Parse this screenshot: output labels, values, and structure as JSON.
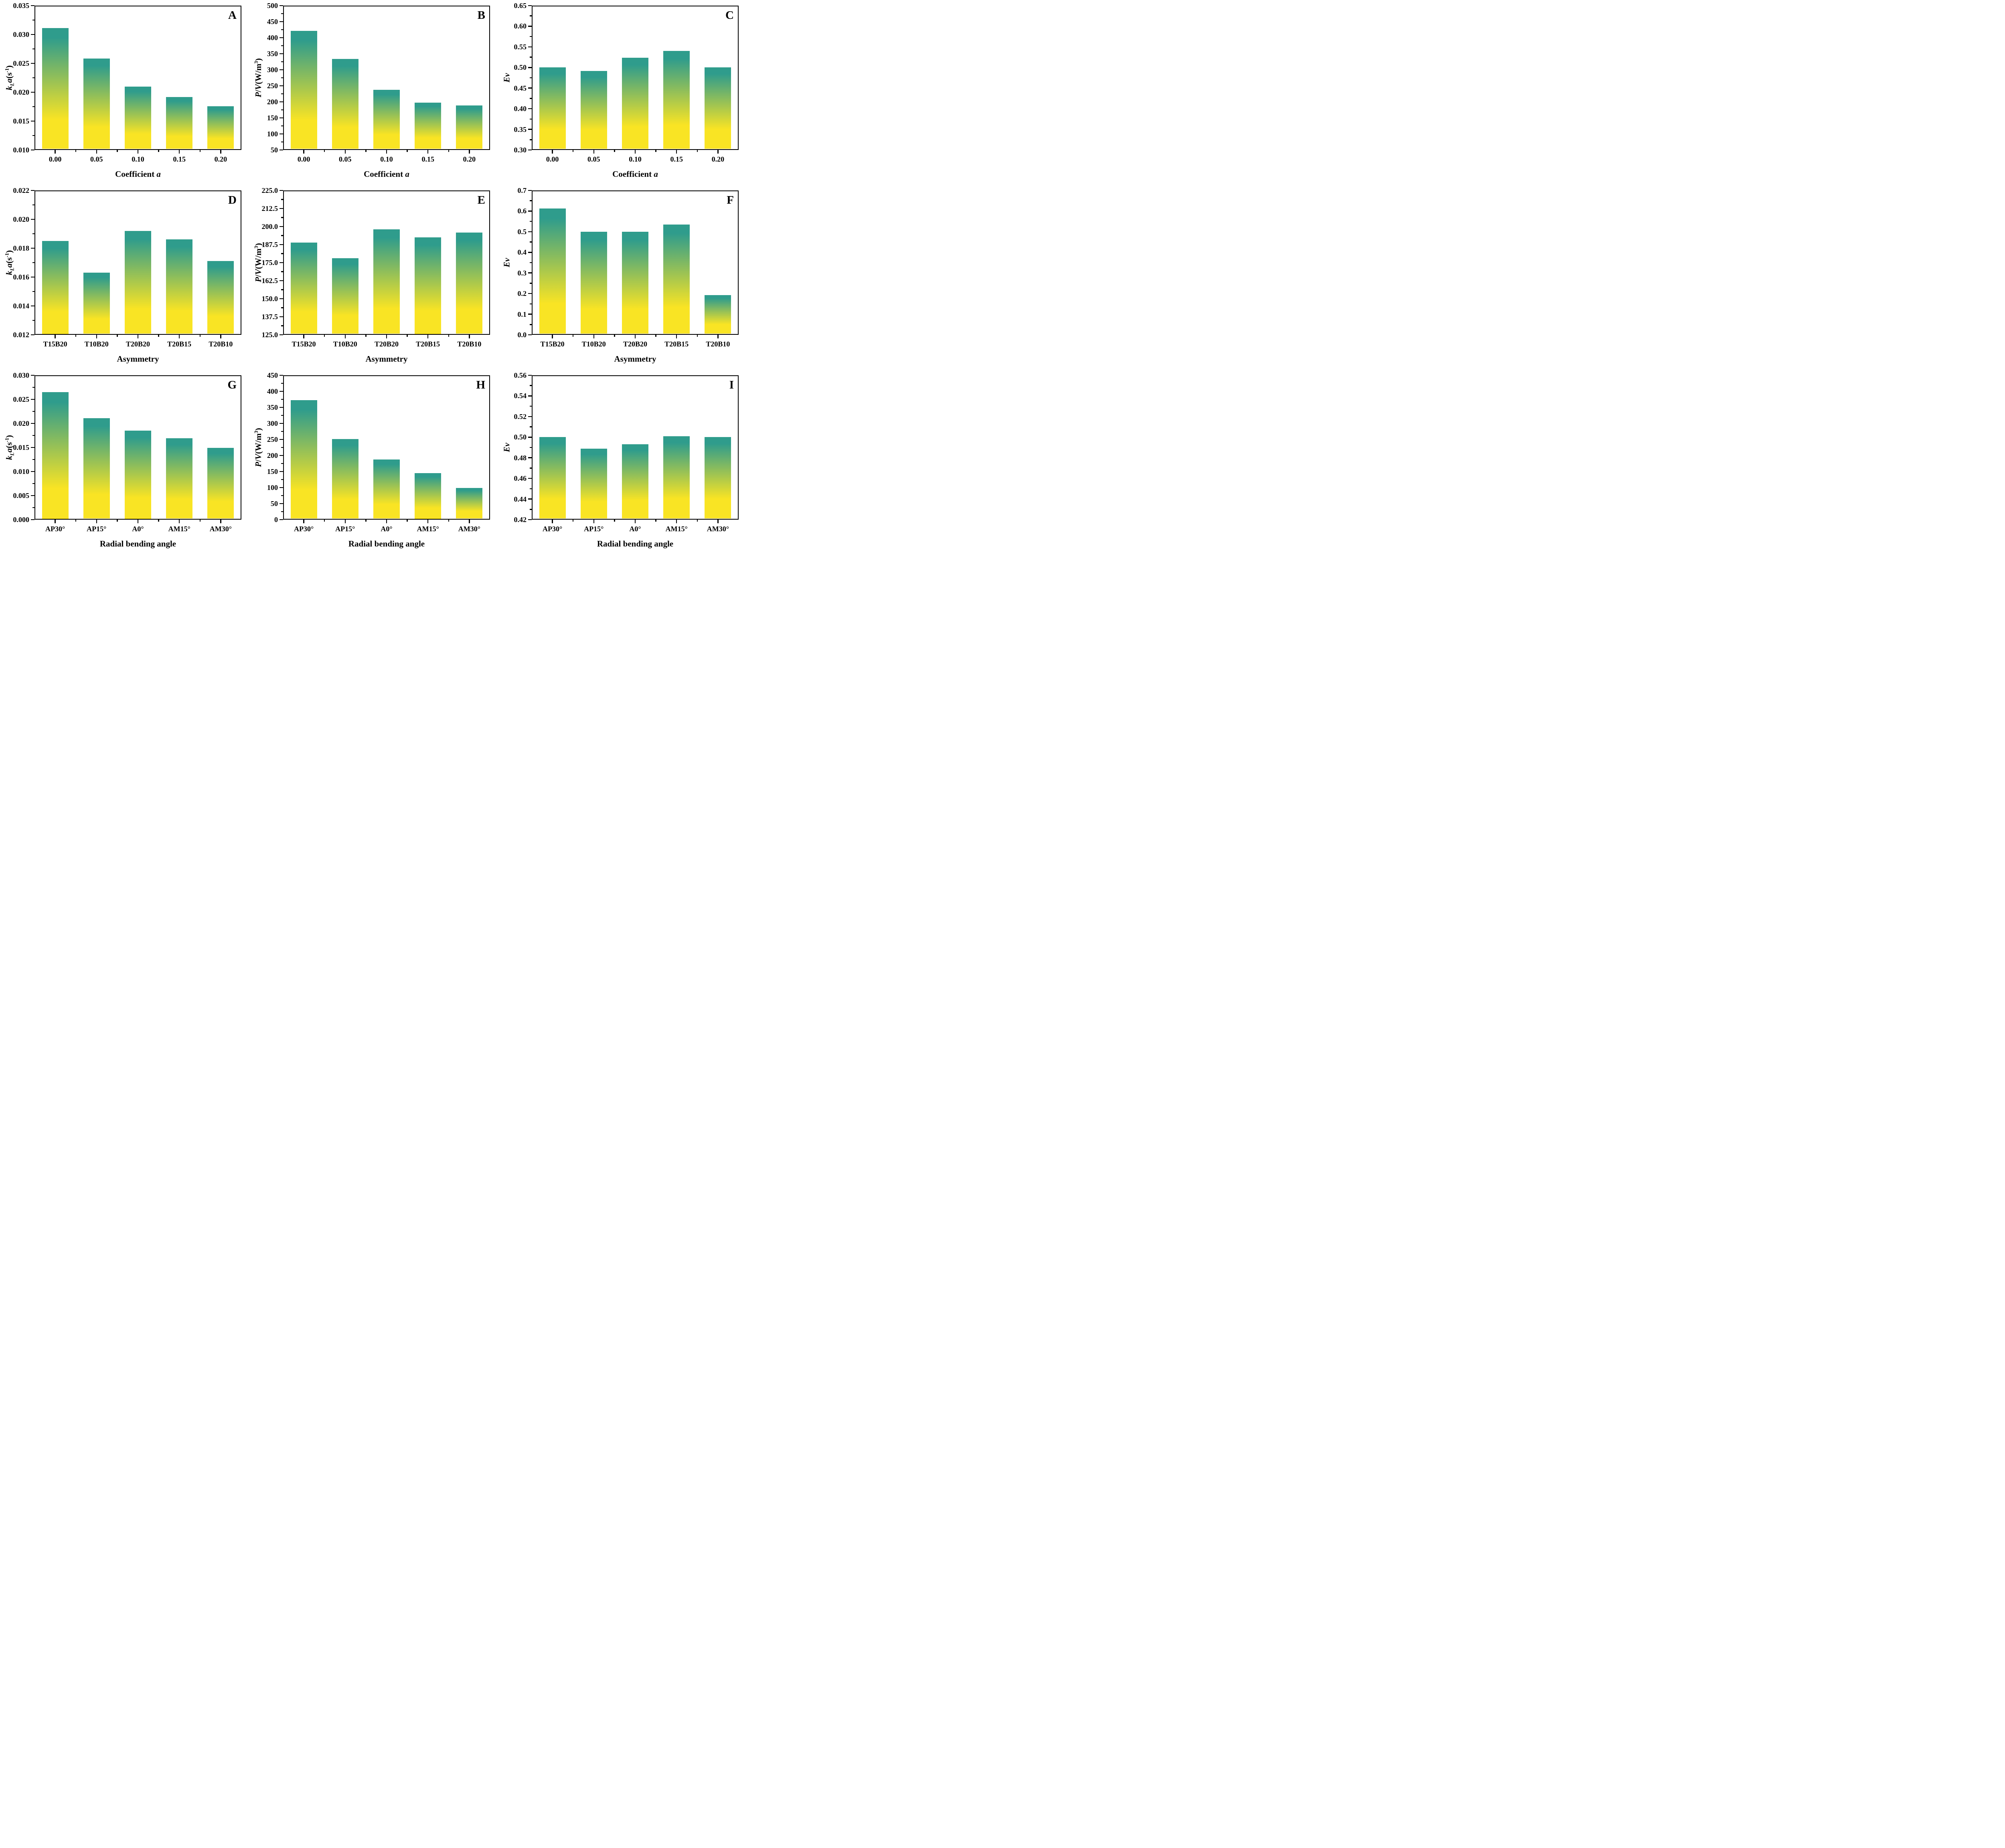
{
  "page": {
    "background": "#ffffff"
  },
  "colors": {
    "bar_top": "#2F9C8C",
    "bar_bottom": "#F9E424",
    "axis": "#000000",
    "text": "#000000"
  },
  "chart_data": [
    {
      "panel_label": "A",
      "type": "bar",
      "categories": [
        "0.00",
        "0.05",
        "0.10",
        "0.15",
        "0.20"
      ],
      "values": [
        0.0311,
        0.0258,
        0.021,
        0.0192,
        0.0176
      ],
      "ylim": [
        0.01,
        0.035
      ],
      "ytick_step": 0.005,
      "ytick_decimals": 3,
      "ylabel": "kLa(s-1)",
      "ylabel_kind": "kLa",
      "xlabel": "Coefficient a",
      "xlabel_kind": "coeff-a",
      "grid": false,
      "legend": null
    },
    {
      "panel_label": "B",
      "type": "bar",
      "categories": [
        "0.00",
        "0.05",
        "0.10",
        "0.15",
        "0.20"
      ],
      "values": [
        421,
        334,
        237,
        198,
        189
      ],
      "ylim": [
        50,
        500
      ],
      "ytick_step": 50,
      "ytick_decimals": 0,
      "ylabel": "P/V(W/m3)",
      "ylabel_kind": "PV",
      "xlabel": "Coefficient a",
      "xlabel_kind": "coeff-a",
      "grid": false,
      "legend": null
    },
    {
      "panel_label": "C",
      "type": "bar",
      "categories": [
        "0.00",
        "0.05",
        "0.10",
        "0.15",
        "0.20"
      ],
      "values": [
        0.5,
        0.492,
        0.524,
        0.54,
        0.5
      ],
      "ylim": [
        0.3,
        0.65
      ],
      "ytick_step": 0.05,
      "ytick_decimals": 2,
      "ylabel": "Ev",
      "ylabel_kind": "Ev",
      "xlabel": "Coefficient a",
      "xlabel_kind": "coeff-a",
      "grid": false,
      "legend": null
    },
    {
      "panel_label": "D",
      "type": "bar",
      "categories": [
        "T15B20",
        "T10B20",
        "T20B20",
        "T20B15",
        "T20B10"
      ],
      "values": [
        0.0185,
        0.0163,
        0.0192,
        0.0186,
        0.0171
      ],
      "ylim": [
        0.012,
        0.022
      ],
      "ytick_step": 0.002,
      "ytick_decimals": 3,
      "ylabel": "kLa(s-1)",
      "ylabel_kind": "kLa",
      "xlabel": "Asymmetry",
      "xlabel_kind": "plain",
      "grid": false,
      "legend": null
    },
    {
      "panel_label": "E",
      "type": "bar",
      "categories": [
        "T15B20",
        "T10B20",
        "T20B20",
        "T20B15",
        "T20B10"
      ],
      "values": [
        188.8,
        178.0,
        198.0,
        192.5,
        195.8
      ],
      "ylim": [
        125.0,
        225.0
      ],
      "ytick_step": 12.5,
      "ytick_decimals": 1,
      "ylabel": "P/V(W/m3)",
      "ylabel_kind": "PV",
      "xlabel": "Asymmetry",
      "xlabel_kind": "plain",
      "grid": false,
      "legend": null
    },
    {
      "panel_label": "F",
      "type": "bar",
      "categories": [
        "T15B20",
        "T10B20",
        "T20B20",
        "T20B15",
        "T20B10"
      ],
      "values": [
        0.613,
        0.5,
        0.5,
        0.535,
        0.193
      ],
      "ylim": [
        0.0,
        0.7
      ],
      "ytick_step": 0.1,
      "ytick_decimals": 1,
      "ylabel": "Ev",
      "ylabel_kind": "Ev",
      "xlabel": "Asymmetry",
      "xlabel_kind": "plain",
      "grid": false,
      "legend": null
    },
    {
      "panel_label": "G",
      "type": "bar",
      "categories": [
        "AP30°",
        "AP15°",
        "A0°",
        "AM15°",
        "AM30°"
      ],
      "values": [
        0.0265,
        0.0211,
        0.0185,
        0.0169,
        0.0149
      ],
      "ylim": [
        0.0,
        0.03
      ],
      "ytick_step": 0.005,
      "ytick_decimals": 3,
      "ylabel": "kLa(s-1)",
      "ylabel_kind": "kLa",
      "xlabel": "Radial bending angle",
      "xlabel_kind": "plain",
      "grid": false,
      "legend": null
    },
    {
      "panel_label": "H",
      "type": "bar",
      "categories": [
        "AP30°",
        "AP15°",
        "A0°",
        "AM15°",
        "AM30°"
      ],
      "values": [
        372,
        251,
        188,
        145,
        99
      ],
      "ylim": [
        0,
        450
      ],
      "ytick_step": 50,
      "ytick_decimals": 0,
      "ylabel": "P/V(W/m3)",
      "ylabel_kind": "PV",
      "xlabel": "Radial bending angle",
      "xlabel_kind": "plain",
      "grid": false,
      "legend": null
    },
    {
      "panel_label": "I",
      "type": "bar",
      "categories": [
        "AP30°",
        "AP15°",
        "A0°",
        "AM15°",
        "AM30°"
      ],
      "values": [
        0.5,
        0.489,
        0.493,
        0.501,
        0.5
      ],
      "ylim": [
        0.42,
        0.56
      ],
      "ytick_step": 0.02,
      "ytick_decimals": 2,
      "ylabel": "Ev",
      "ylabel_kind": "Ev",
      "xlabel": "Radial bending angle",
      "xlabel_kind": "plain",
      "grid": false,
      "legend": null
    }
  ]
}
